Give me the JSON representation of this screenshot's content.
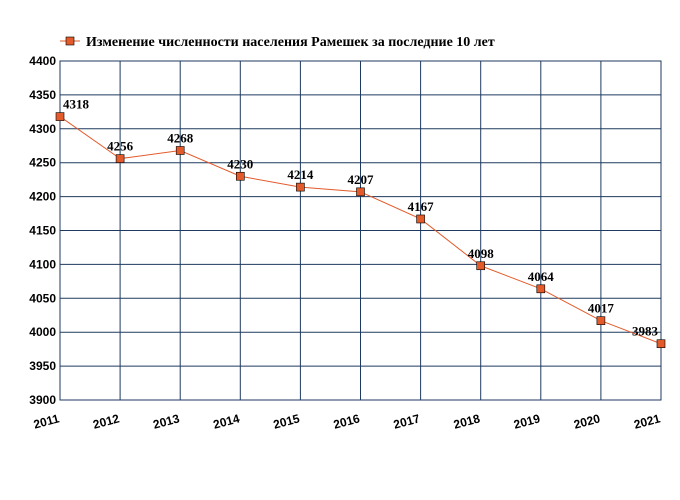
{
  "chart_data": {
    "type": "line",
    "title": "Изменение численности населения Рамешек за последние 10 лет",
    "x": [
      "2011",
      "2012",
      "2013",
      "2014",
      "2015",
      "2016",
      "2017",
      "2018",
      "2019",
      "2020",
      "2021"
    ],
    "series": [
      {
        "name": "Изменение численности населения Рамешек за последние 10 лет",
        "values": [
          4318,
          4256,
          4268,
          4230,
          4214,
          4207,
          4167,
          4098,
          4064,
          4017,
          3983
        ],
        "color": "#e35a2b"
      }
    ],
    "ylim": [
      3900,
      4400
    ],
    "yticks": [
      "3900",
      "3950",
      "4000",
      "4050",
      "4100",
      "4150",
      "4200",
      "4250",
      "4300",
      "4350",
      "4400"
    ],
    "grid": true,
    "grid_color": "#1f3a5f",
    "legend_position": "top-left",
    "xlabel": "",
    "ylabel": ""
  }
}
